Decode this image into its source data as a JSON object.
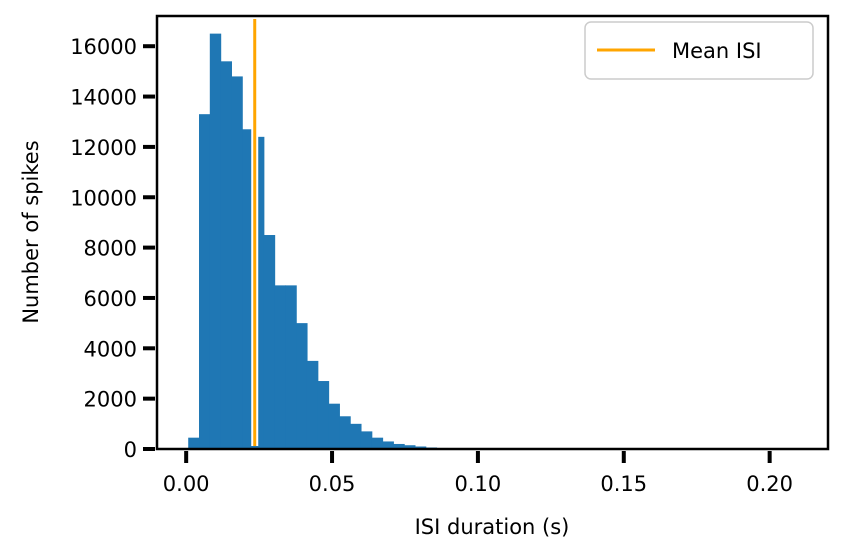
{
  "chart_data": {
    "type": "bar",
    "title": "",
    "xlabel": "ISI duration (s)",
    "ylabel": "Number of spikes",
    "xlim": [
      -0.01,
      0.22
    ],
    "ylim": [
      0,
      17200
    ],
    "xticks": [
      0.0,
      0.05,
      0.1,
      0.15,
      0.2
    ],
    "xtick_labels": [
      "0.00",
      "0.05",
      "0.10",
      "0.15",
      "0.20"
    ],
    "yticks": [
      0,
      2000,
      4000,
      6000,
      8000,
      10000,
      12000,
      14000,
      16000
    ],
    "ytick_labels": [
      "0",
      "2000",
      "4000",
      "6000",
      "8000",
      "10000",
      "12000",
      "14000",
      "16000"
    ],
    "bin_width": 0.0037,
    "bin_starts": [
      0.0007,
      0.0044,
      0.0081,
      0.0118,
      0.0155,
      0.0192,
      0.0229,
      0.0266,
      0.0303,
      0.034,
      0.0377,
      0.0414,
      0.0451,
      0.0488,
      0.0525,
      0.0562,
      0.0599,
      0.0636,
      0.0673,
      0.071,
      0.0747,
      0.0784,
      0.0821,
      0.0858
    ],
    "values": [
      450,
      13300,
      16500,
      15400,
      14800,
      12700,
      12400,
      8500,
      6500,
      6500,
      5000,
      3500,
      2700,
      1800,
      1300,
      1000,
      700,
      450,
      300,
      200,
      150,
      100,
      60,
      40
    ],
    "bar_color": "#1f77b4",
    "mean_isi": 0.0235,
    "mean_color": "#ffa500",
    "legend": {
      "position": "top-right",
      "entries": [
        "Mean ISI"
      ]
    },
    "grid": false
  }
}
